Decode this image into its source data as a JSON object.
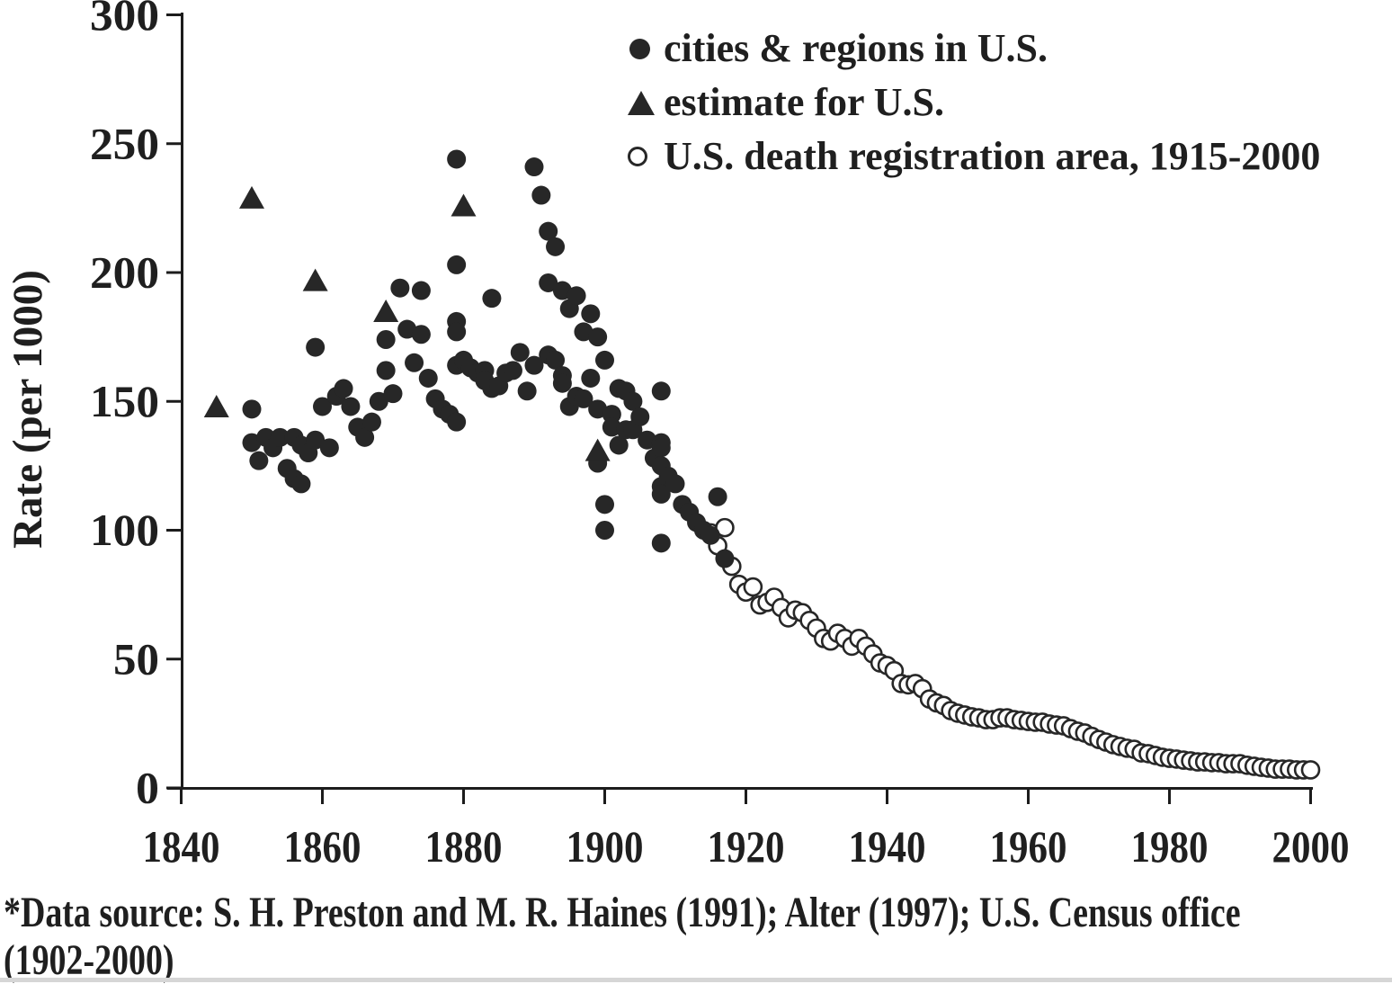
{
  "chart_data": {
    "type": "scatter",
    "title": "",
    "xlabel": "",
    "ylabel": "Rate (per 1000)",
    "xlim": [
      1840,
      2000
    ],
    "ylim": [
      0,
      300
    ],
    "x_ticks": [
      1840,
      1860,
      1880,
      1900,
      1920,
      1940,
      1960,
      1980,
      2000
    ],
    "y_ticks": [
      0,
      50,
      100,
      150,
      200,
      250,
      300
    ],
    "grid": false,
    "legend_position": "top-right",
    "series": [
      {
        "name": "cities & regions in U.S.",
        "marker": "filled-circle",
        "points": [
          [
            1850,
            147
          ],
          [
            1850,
            134
          ],
          [
            1851,
            127
          ],
          [
            1852,
            136
          ],
          [
            1853,
            132
          ],
          [
            1854,
            136
          ],
          [
            1855,
            124
          ],
          [
            1856,
            136
          ],
          [
            1856,
            120
          ],
          [
            1857,
            133
          ],
          [
            1857,
            118
          ],
          [
            1858,
            130
          ],
          [
            1859,
            135
          ],
          [
            1859,
            171
          ],
          [
            1860,
            148
          ],
          [
            1861,
            132
          ],
          [
            1862,
            152
          ],
          [
            1863,
            155
          ],
          [
            1864,
            148
          ],
          [
            1865,
            140
          ],
          [
            1866,
            136
          ],
          [
            1867,
            142
          ],
          [
            1868,
            150
          ],
          [
            1869,
            162
          ],
          [
            1869,
            174
          ],
          [
            1870,
            153
          ],
          [
            1871,
            194
          ],
          [
            1872,
            178
          ],
          [
            1873,
            165
          ],
          [
            1874,
            193
          ],
          [
            1874,
            176
          ],
          [
            1875,
            159
          ],
          [
            1876,
            151
          ],
          [
            1877,
            147
          ],
          [
            1878,
            145
          ],
          [
            1879,
            142
          ],
          [
            1879,
            244
          ],
          [
            1879,
            203
          ],
          [
            1879,
            181
          ],
          [
            1879,
            177
          ],
          [
            1879,
            164
          ],
          [
            1880,
            166
          ],
          [
            1881,
            163
          ],
          [
            1882,
            161
          ],
          [
            1883,
            162
          ],
          [
            1883,
            158
          ],
          [
            1884,
            155
          ],
          [
            1884,
            190
          ],
          [
            1885,
            156
          ],
          [
            1886,
            161
          ],
          [
            1887,
            162
          ],
          [
            1888,
            169
          ],
          [
            1889,
            154
          ],
          [
            1890,
            164
          ],
          [
            1890,
            241
          ],
          [
            1891,
            230
          ],
          [
            1892,
            216
          ],
          [
            1892,
            196
          ],
          [
            1892,
            168
          ],
          [
            1893,
            210
          ],
          [
            1893,
            166
          ],
          [
            1894,
            160
          ],
          [
            1894,
            157
          ],
          [
            1894,
            193
          ],
          [
            1895,
            186
          ],
          [
            1895,
            148
          ],
          [
            1896,
            191
          ],
          [
            1896,
            152
          ],
          [
            1897,
            151
          ],
          [
            1897,
            177
          ],
          [
            1898,
            184
          ],
          [
            1898,
            159
          ],
          [
            1899,
            175
          ],
          [
            1899,
            147
          ],
          [
            1899,
            126
          ],
          [
            1900,
            166
          ],
          [
            1900,
            110
          ],
          [
            1900,
            100
          ],
          [
            1901,
            145
          ],
          [
            1901,
            140
          ],
          [
            1902,
            155
          ],
          [
            1902,
            133
          ],
          [
            1903,
            154
          ],
          [
            1903,
            139
          ],
          [
            1904,
            150
          ],
          [
            1904,
            139
          ],
          [
            1905,
            144
          ],
          [
            1906,
            135
          ],
          [
            1907,
            128
          ],
          [
            1908,
            154
          ],
          [
            1908,
            134
          ],
          [
            1908,
            132
          ],
          [
            1908,
            125
          ],
          [
            1908,
            117
          ],
          [
            1908,
            114
          ],
          [
            1908,
            95
          ],
          [
            1909,
            121
          ],
          [
            1910,
            118
          ],
          [
            1911,
            110
          ],
          [
            1912,
            107
          ],
          [
            1913,
            103
          ],
          [
            1914,
            100
          ],
          [
            1915,
            98
          ],
          [
            1916,
            113
          ],
          [
            1917,
            89
          ]
        ]
      },
      {
        "name": "estimate for U.S.",
        "marker": "filled-triangle",
        "points": [
          [
            1845,
            148
          ],
          [
            1850,
            229
          ],
          [
            1859,
            197
          ],
          [
            1869,
            185
          ],
          [
            1880,
            226
          ],
          [
            1899,
            131
          ]
        ]
      },
      {
        "name": "U.S. death registration area, 1915-2000",
        "marker": "open-circle",
        "x_start": 1915,
        "x_step": 1,
        "values": [
          99,
          94,
          101,
          86,
          79,
          76,
          78,
          71,
          72,
          74,
          70,
          66,
          69,
          68,
          65,
          62,
          58,
          57,
          60,
          58,
          55,
          58,
          55,
          52,
          48.5,
          47.5,
          45.5,
          40.5,
          40,
          40.5,
          38.5,
          34.5,
          33,
          32,
          30,
          29,
          28.3,
          27.6,
          27.2,
          26.5,
          26.5,
          27.2,
          27.2,
          26.5,
          26.2,
          25.8,
          25.5,
          25.5,
          24.8,
          24.4,
          24.1,
          23,
          22,
          21.3,
          20,
          18.8,
          17.8,
          16.8,
          16.1,
          15.4,
          15,
          13.6,
          13.3,
          12.6,
          11.9,
          11.5,
          11.2,
          10.8,
          10.5,
          10.1,
          10.1,
          9.8,
          9.8,
          9.4,
          9.4,
          9.4,
          8.8,
          8.4,
          8,
          7.7,
          7.3,
          7.3,
          7.3,
          7,
          7,
          7
        ]
      }
    ]
  },
  "axes": {
    "y_title": "Rate (per 1000)",
    "y_tick_labels": [
      "0",
      "50",
      "100",
      "150",
      "200",
      "250",
      "300"
    ],
    "x_tick_labels": [
      "1840",
      "1860",
      "1880",
      "1900",
      "1920",
      "1940",
      "1960",
      "1980",
      "2000"
    ]
  },
  "legend": {
    "items": [
      {
        "marker": "filled-circle-icon",
        "label": "cities & regions in U.S."
      },
      {
        "marker": "filled-triangle-icon",
        "label": "estimate for U.S."
      },
      {
        "marker": "open-circle-icon",
        "label": "U.S. death registration area, 1915-2000"
      }
    ]
  },
  "footer": {
    "line1": "*Data source: S. H. Preston and M. R. Haines (1991); Alter (1997); U.S. Census office",
    "line2": "(1902-2000)"
  },
  "colors": {
    "ink": "#1f1f1f",
    "marker_fill": "#272727",
    "background": "#ffffff",
    "scan_edge": "#d6d6d6"
  }
}
